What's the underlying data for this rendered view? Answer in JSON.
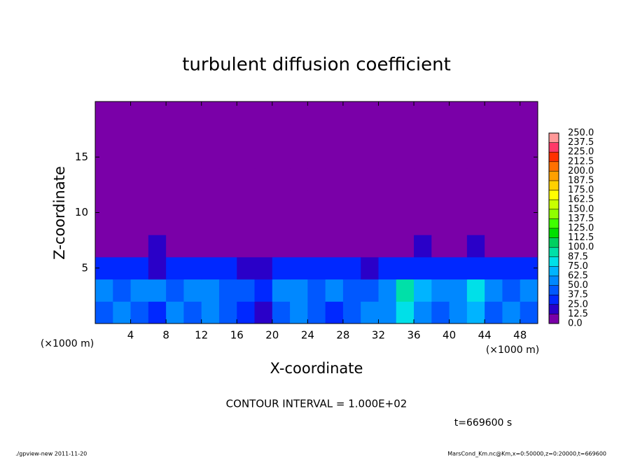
{
  "chart_data": {
    "type": "heatmap",
    "title": "turbulent diffusion coefficient",
    "x_label": "X-coordinate",
    "y_label": "Z-coordinate",
    "x_unit": "(×1000 m)",
    "y_unit": "(×1000 m)",
    "xlim": [
      0,
      50
    ],
    "ylim": [
      0,
      20
    ],
    "xticks": [
      4,
      8,
      12,
      16,
      20,
      24,
      28,
      32,
      36,
      40,
      44,
      48
    ],
    "yticks": [
      5,
      10,
      15
    ],
    "z": [
      [
        45,
        50,
        40,
        35,
        55,
        45,
        50,
        40,
        30,
        20,
        45,
        50,
        40,
        35,
        45,
        50,
        60,
        80,
        50,
        45,
        55,
        70,
        45,
        50,
        40
      ],
      [
        50,
        45,
        55,
        50,
        45,
        55,
        50,
        45,
        40,
        35,
        55,
        50,
        45,
        50,
        45,
        40,
        50,
        90,
        65,
        55,
        60,
        75,
        55,
        45,
        50
      ],
      [
        30,
        25,
        25,
        20,
        30,
        30,
        30,
        30,
        20,
        15,
        25,
        30,
        30,
        30,
        25,
        20,
        25,
        30,
        30,
        35,
        30,
        30,
        25,
        25,
        30
      ],
      [
        0,
        0,
        0,
        15,
        0,
        0,
        0,
        0,
        0,
        0,
        0,
        0,
        0,
        0,
        0,
        0,
        0,
        0,
        15,
        0,
        0,
        15,
        0,
        0,
        0
      ],
      [
        0,
        0,
        0,
        0,
        0,
        0,
        0,
        0,
        0,
        0,
        0,
        0,
        0,
        0,
        0,
        0,
        0,
        0,
        0,
        0,
        0,
        0,
        0,
        0,
        0
      ],
      [
        0,
        0,
        0,
        0,
        0,
        0,
        0,
        0,
        0,
        0,
        0,
        0,
        0,
        0,
        0,
        0,
        0,
        0,
        0,
        0,
        0,
        0,
        0,
        0,
        0
      ],
      [
        0,
        0,
        0,
        0,
        0,
        0,
        0,
        0,
        0,
        0,
        0,
        0,
        0,
        0,
        0,
        0,
        0,
        0,
        0,
        0,
        0,
        0,
        0,
        0,
        0
      ],
      [
        0,
        0,
        0,
        0,
        0,
        0,
        0,
        0,
        0,
        0,
        0,
        0,
        0,
        0,
        0,
        0,
        0,
        0,
        0,
        0,
        0,
        0,
        0,
        0,
        0
      ],
      [
        0,
        0,
        0,
        0,
        0,
        0,
        0,
        0,
        0,
        0,
        0,
        0,
        0,
        0,
        0,
        0,
        0,
        0,
        0,
        0,
        0,
        0,
        0,
        0,
        0
      ],
      [
        0,
        0,
        0,
        0,
        0,
        0,
        0,
        0,
        0,
        0,
        0,
        0,
        0,
        0,
        0,
        0,
        0,
        0,
        0,
        0,
        0,
        0,
        0,
        0,
        0
      ]
    ],
    "levels": [
      {
        "value": 0,
        "label": "0.0"
      },
      12.5,
      {
        "value": 25,
        "label": "25.0"
      },
      37.5,
      {
        "value": 50,
        "label": "50.0"
      },
      62.5,
      {
        "value": 75,
        "label": "75.0"
      },
      87.5,
      {
        "value": 100,
        "label": "100.0"
      },
      112.5,
      {
        "value": 125,
        "label": "125.0"
      },
      137.5,
      {
        "value": 150,
        "label": "150.0"
      },
      162.5,
      {
        "value": 175,
        "label": "175.0"
      },
      187.5,
      {
        "value": 200,
        "label": "200.0"
      },
      212.5,
      {
        "value": 225,
        "label": "225.0"
      },
      237.5,
      {
        "value": 250,
        "label": "250.0"
      }
    ],
    "colors": [
      "#7a00a8",
      "#2a00c8",
      "#0028ff",
      "#0058ff",
      "#0088ff",
      "#00b4ff",
      "#00e0e8",
      "#00e0a8",
      "#00d060",
      "#00e000",
      "#40ff00",
      "#90ff00",
      "#c8ff00",
      "#ffff00",
      "#ffd000",
      "#ffa000",
      "#ff7000",
      "#ff3000",
      "#ff3868",
      "#ff9898"
    ],
    "annotation": "CONTOUR INTERVAL = 1.000E+02",
    "time_label": "t=669600 s",
    "footer_left": "./gpview-new   2011-11-20",
    "footer_right": "MarsCond_Km.nc@Km,x=0:50000,z=0:20000,t=669600"
  }
}
